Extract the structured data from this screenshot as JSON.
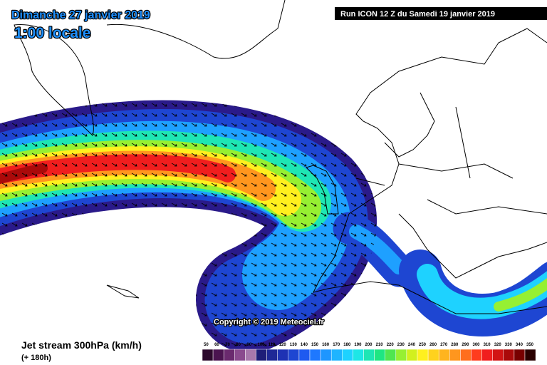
{
  "header": {
    "date": "Dimanche 27 janvier 2019",
    "time": "1:00 locale",
    "run": "Run ICON 12 Z du Samedi 19 janvier 2019"
  },
  "copyright": "Copyright © 2019 Meteociel.fr",
  "footer": {
    "title": "Jet stream 300hPa (km/h)",
    "lead": "(+ 180h)"
  },
  "scale": {
    "values": [
      50,
      60,
      70,
      80,
      90,
      100,
      110,
      120,
      130,
      140,
      150,
      160,
      170,
      180,
      190,
      200,
      210,
      220,
      230,
      240,
      250,
      260,
      270,
      280,
      290,
      300,
      310,
      320,
      330,
      340,
      350
    ],
    "colors": [
      "#2d0a2d",
      "#4b1450",
      "#6a2a6e",
      "#8a4a8e",
      "#a878ac",
      "#1e1e78",
      "#1e2896",
      "#1e32b4",
      "#1e46d2",
      "#1e5af0",
      "#1e78ff",
      "#1e96ff",
      "#1eb4ff",
      "#1ed2ff",
      "#1ee6e6",
      "#1ee6b4",
      "#1ee682",
      "#50e650",
      "#96f032",
      "#d2f01e",
      "#fff01e",
      "#ffd21e",
      "#ffb41e",
      "#ff961e",
      "#ff6e1e",
      "#ff3c1e",
      "#f01e1e",
      "#d21414",
      "#aa0a0a",
      "#780000",
      "#2a0000"
    ]
  }
}
